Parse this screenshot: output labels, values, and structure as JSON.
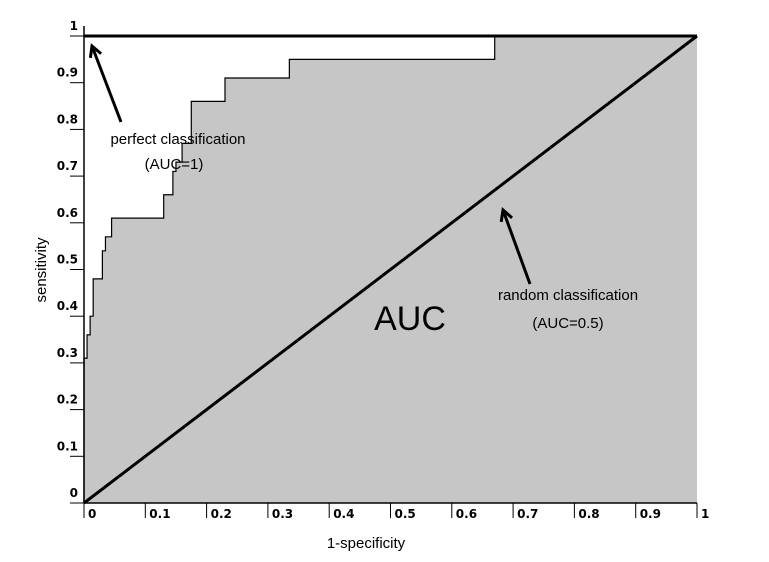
{
  "chart_data": {
    "type": "line",
    "title": "",
    "xlabel": "1-specificity",
    "ylabel": "sensitivity",
    "xlim": [
      0,
      1
    ],
    "ylim": [
      0,
      1
    ],
    "x_ticks": [
      "0",
      "0.1",
      "0.2",
      "0.3",
      "0.4",
      "0.5",
      "0.6",
      "0.7",
      "0.8",
      "0.9",
      "1"
    ],
    "y_ticks": [
      "0",
      "0.1",
      "0.2",
      "0.3",
      "0.4",
      "0.5",
      "0.6",
      "0.7",
      "0.8",
      "0.9",
      "1"
    ],
    "grid": false,
    "fill_color": "#c6c6c6",
    "series": [
      {
        "x": [
          0,
          0,
          0.005,
          0.005,
          0.01,
          0.01,
          0.015,
          0.015,
          0.03,
          0.03,
          0.035,
          0.035,
          0.045,
          0.045,
          0.075,
          0.075,
          0.09,
          0.09,
          0.13,
          0.13,
          0.145,
          0.145,
          0.15,
          0.15,
          0.16,
          0.16,
          0.175,
          0.175,
          0.23,
          0.23,
          0.335,
          0.335,
          0.67,
          0.67,
          1.0
        ],
        "y": [
          0,
          0.31,
          0.31,
          0.36,
          0.36,
          0.4,
          0.4,
          0.48,
          0.48,
          0.54,
          0.54,
          0.57,
          0.57,
          0.61,
          0.61,
          0.61,
          0.61,
          0.61,
          0.61,
          0.66,
          0.66,
          0.71,
          0.71,
          0.73,
          0.73,
          0.77,
          0.77,
          0.86,
          0.86,
          0.91,
          0.91,
          0.95,
          0.95,
          1.0,
          1.0
        ]
      },
      {
        "x": [
          0,
          1
        ],
        "y": [
          0,
          1
        ]
      },
      {
        "x": [
          0,
          1
        ],
        "y": [
          1,
          1
        ]
      }
    ],
    "annotations": [
      {
        "line1": "perfect classification",
        "line2": "(AUC=1)"
      },
      {
        "line1": "random classification",
        "line2": "(AUC=0.5)"
      },
      {
        "text": "AUC"
      }
    ]
  }
}
